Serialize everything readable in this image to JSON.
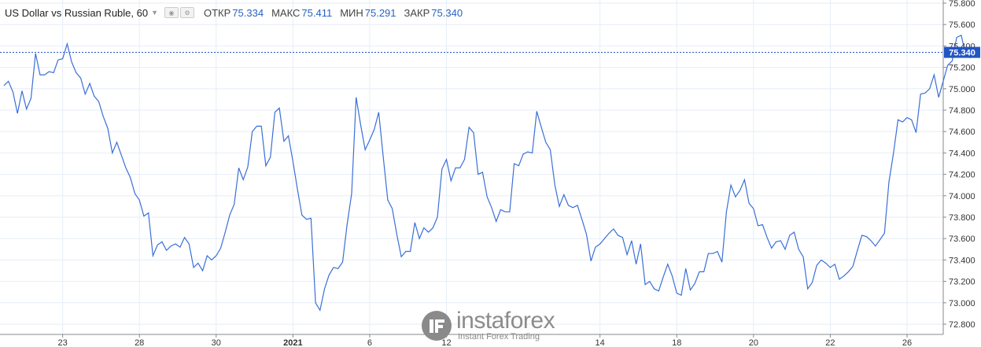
{
  "legend": {
    "symbol": "US Dollar vs Russian Ruble, 60",
    "open_label": "ОТКР",
    "open_value": "75.334",
    "high_label": "МАКС",
    "high_value": "75.411",
    "low_label": "МИН",
    "low_value": "75.291",
    "close_label": "ЗАКР",
    "close_value": "75.340"
  },
  "watermark": {
    "brand": "instaforex",
    "sub": "Instant Forex Trading"
  },
  "chart_data": {
    "type": "line",
    "title": "US Dollar vs Russian Ruble, 60",
    "x_ticks": [
      {
        "label": "23",
        "i": 13
      },
      {
        "label": "28",
        "i": 30
      },
      {
        "label": "30",
        "i": 47
      },
      {
        "label": "2021",
        "i": 64
      },
      {
        "label": "6",
        "i": 81
      },
      {
        "label": "12",
        "i": 98
      },
      {
        "label": "14",
        "i": 132
      },
      {
        "label": "18",
        "i": 149
      },
      {
        "label": "20",
        "i": 166
      },
      {
        "label": "22",
        "i": 183
      },
      {
        "label": "26",
        "i": 200
      }
    ],
    "y_ticks": [
      "72.800",
      "73.000",
      "73.200",
      "73.400",
      "73.600",
      "73.800",
      "74.000",
      "74.200",
      "74.400",
      "74.600",
      "74.800",
      "75.000",
      "75.200",
      "75.400",
      "75.600",
      "75.800"
    ],
    "ylim": [
      72.75,
      75.85
    ],
    "last_price": "75.340",
    "last_price_value": 75.34,
    "line_color": "#3a6fd8",
    "series": [
      {
        "values": [
          75.03,
          75.07,
          74.97,
          74.77,
          74.98,
          74.81,
          74.91,
          75.33,
          75.13,
          75.13,
          75.16,
          75.15,
          75.27,
          75.28,
          75.42,
          75.25,
          75.15,
          75.1,
          74.95,
          75.05,
          74.93,
          74.88,
          74.74,
          74.63,
          74.4,
          74.5,
          74.38,
          74.26,
          74.17,
          74.02,
          73.96,
          73.81,
          73.84,
          73.44,
          73.54,
          73.57,
          73.49,
          73.53,
          73.55,
          73.52,
          73.61,
          73.55,
          73.33,
          73.37,
          73.3,
          73.44,
          73.4,
          73.44,
          73.51,
          73.66,
          73.82,
          73.92,
          74.26,
          74.15,
          74.27,
          74.6,
          74.65,
          74.65,
          74.28,
          74.36,
          74.78,
          74.82,
          74.51,
          74.56,
          74.32,
          74.06,
          73.82,
          73.78,
          73.79,
          73.0,
          72.93,
          73.13,
          73.26,
          73.33,
          73.32,
          73.38,
          73.73,
          74.02,
          74.92,
          74.66,
          74.43,
          74.52,
          74.62,
          74.78,
          74.36,
          73.96,
          73.88,
          73.64,
          73.43,
          73.48,
          73.48,
          73.75,
          73.6,
          73.7,
          73.66,
          73.7,
          73.8,
          74.25,
          74.34,
          74.14,
          74.26,
          74.26,
          74.34,
          74.64,
          74.59,
          74.2,
          74.22,
          73.99,
          73.89,
          73.76,
          73.87,
          73.85,
          73.85,
          74.3,
          74.28,
          74.39,
          74.41,
          74.4,
          74.79,
          74.64,
          74.5,
          74.43,
          74.1,
          73.9,
          74.01,
          73.91,
          73.89,
          73.91,
          73.78,
          73.64,
          73.39,
          73.52,
          73.55,
          73.6,
          73.65,
          73.69,
          73.63,
          73.61,
          73.45,
          73.58,
          73.36,
          73.55,
          73.17,
          73.2,
          73.13,
          73.11,
          73.24,
          73.36,
          73.25,
          73.09,
          73.07,
          73.32,
          73.12,
          73.18,
          73.29,
          73.29,
          73.46,
          73.46,
          73.48,
          73.38,
          73.85,
          74.1,
          73.99,
          74.05,
          74.15,
          73.93,
          73.88,
          73.72,
          73.73,
          73.61,
          73.51,
          73.57,
          73.58,
          73.5,
          73.63,
          73.66,
          73.5,
          73.43,
          73.13,
          73.19,
          73.35,
          73.4,
          73.37,
          73.33,
          73.36,
          73.22,
          73.25,
          73.29,
          73.34,
          73.49,
          73.63,
          73.62,
          73.58,
          73.53,
          73.59,
          73.65,
          74.13,
          74.4,
          74.71,
          74.69,
          74.73,
          74.71,
          74.59,
          74.95,
          74.96,
          75.0,
          75.13,
          74.92,
          75.07,
          75.22,
          75.26,
          75.48,
          75.5,
          75.31,
          75.29,
          75.33,
          75.34
        ]
      }
    ]
  }
}
